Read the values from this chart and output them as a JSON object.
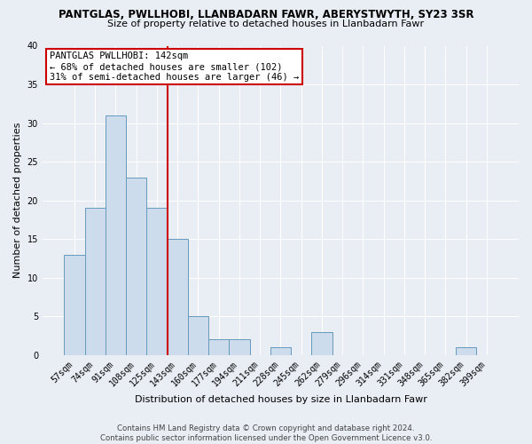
{
  "title": "PANTGLAS, PWLLHOBI, LLANBADARN FAWR, ABERYSTWYTH, SY23 3SR",
  "subtitle": "Size of property relative to detached houses in Llanbadarn Fawr",
  "xlabel": "Distribution of detached houses by size in Llanbadarn Fawr",
  "ylabel": "Number of detached properties",
  "bin_labels": [
    "57sqm",
    "74sqm",
    "91sqm",
    "108sqm",
    "125sqm",
    "143sqm",
    "160sqm",
    "177sqm",
    "194sqm",
    "211sqm",
    "228sqm",
    "245sqm",
    "262sqm",
    "279sqm",
    "296sqm",
    "314sqm",
    "331sqm",
    "348sqm",
    "365sqm",
    "382sqm",
    "399sqm"
  ],
  "bar_heights": [
    13,
    19,
    31,
    23,
    19,
    15,
    5,
    2,
    2,
    0,
    1,
    0,
    3,
    0,
    0,
    0,
    0,
    0,
    0,
    1,
    0
  ],
  "bar_color": "#ccdcec",
  "bar_edge_color": "#6699bb",
  "highlight_line_color": "#cc0000",
  "annotation_title": "PANTGLAS PWLLHOBI: 142sqm",
  "annotation_line1": "← 68% of detached houses are smaller (102)",
  "annotation_line2": "31% of semi-detached houses are larger (46) →",
  "annotation_box_facecolor": "#ffffff",
  "annotation_box_edgecolor": "#cc0000",
  "ylim": [
    0,
    40
  ],
  "yticks": [
    0,
    5,
    10,
    15,
    20,
    25,
    30,
    35,
    40
  ],
  "footer_line1": "Contains HM Land Registry data © Crown copyright and database right 2024.",
  "footer_line2": "Contains public sector information licensed under the Open Government Licence v3.0.",
  "plot_bg_color": "#e8eef4",
  "fig_bg_color": "#e8eef4",
  "grid_color": "#ffffff",
  "title_fontsize": 8.5,
  "subtitle_fontsize": 8,
  "axis_label_fontsize": 8,
  "tick_fontsize": 7,
  "annotation_fontsize": 7.5,
  "footer_fontsize": 6.2,
  "red_line_x": 4.5
}
